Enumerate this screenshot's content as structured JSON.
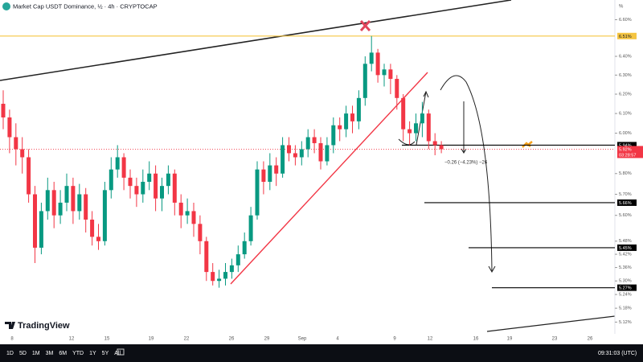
{
  "chart_data": {
    "type": "candlestick",
    "title": "Market Cap USDT Dominance, ½ · 4h · CRYPTOCAP",
    "log_scale": true,
    "ylim": [
      5.08,
      6.71
    ],
    "y_unit": "%",
    "yticks": [
      {
        "value": 6.6,
        "label": "6.60%"
      },
      {
        "value": 6.4,
        "label": "6.40%"
      },
      {
        "value": 6.3,
        "label": "6.30%"
      },
      {
        "value": 6.2,
        "label": "6.20%"
      },
      {
        "value": 6.1,
        "label": "6.10%"
      },
      {
        "value": 6.0,
        "label": "6.00%"
      },
      {
        "value": 5.8,
        "label": "5.80%"
      },
      {
        "value": 5.7,
        "label": "5.70%"
      },
      {
        "value": 5.6,
        "label": "5.60%"
      },
      {
        "value": 5.48,
        "label": "5.48%"
      },
      {
        "value": 5.42,
        "label": "5.42%"
      },
      {
        "value": 5.36,
        "label": "5.36%"
      },
      {
        "value": 5.3,
        "label": "5.30%"
      },
      {
        "value": 5.24,
        "label": "5.24%"
      },
      {
        "value": 5.18,
        "label": "5.18%"
      },
      {
        "value": 5.12,
        "label": "5.12%"
      }
    ],
    "x_labels": [
      "8",
      "12",
      "15",
      "19",
      "22",
      "26",
      "29",
      "Sep",
      "4",
      "9",
      "12",
      "16",
      "19",
      "23",
      "26"
    ],
    "up_color": "#089981",
    "down_color": "#f23645",
    "series": [
      {
        "open": [
          6.15,
          6.08,
          5.98,
          5.92,
          5.88,
          5.7,
          5.45,
          5.62,
          5.72,
          5.6,
          5.66,
          5.74,
          5.62,
          5.7,
          5.58,
          5.5,
          5.48,
          5.72,
          5.82,
          5.88,
          5.78,
          5.74,
          5.7,
          5.76,
          5.8,
          5.68,
          5.74,
          5.8,
          5.66,
          5.6,
          5.62,
          5.56,
          5.48,
          5.34,
          5.3,
          5.31,
          5.34,
          5.37,
          5.42,
          5.48,
          5.6,
          5.82,
          5.76,
          5.84,
          5.8,
          5.94,
          5.9,
          5.88,
          5.92,
          5.98,
          5.95,
          5.86,
          5.94,
          6.04,
          6.02,
          6.1,
          6.06,
          6.18,
          6.36,
          6.42,
          6.3,
          6.33,
          6.28,
          6.18,
          6.02,
          6.0,
          6.05,
          6.1,
          5.96,
          5.94
        ],
        "high": [
          6.22,
          6.12,
          6.05,
          5.98,
          5.92,
          5.74,
          5.66,
          5.78,
          5.76,
          5.72,
          5.8,
          5.78,
          5.75,
          5.73,
          5.62,
          5.56,
          5.76,
          5.88,
          5.94,
          5.9,
          5.82,
          5.78,
          5.82,
          5.86,
          5.84,
          5.78,
          5.84,
          5.82,
          5.7,
          5.68,
          5.66,
          5.6,
          5.5,
          5.38,
          5.35,
          5.38,
          5.4,
          5.46,
          5.52,
          5.64,
          5.86,
          5.86,
          5.9,
          5.88,
          5.98,
          5.98,
          5.94,
          5.96,
          6.02,
          6.02,
          5.98,
          5.98,
          6.08,
          6.08,
          6.14,
          6.14,
          6.22,
          6.4,
          6.51,
          6.44,
          6.36,
          6.36,
          6.3,
          6.2,
          6.06,
          6.1,
          6.16,
          6.12,
          6.0,
          5.96
        ],
        "low": [
          6.02,
          5.9,
          5.84,
          5.8,
          5.66,
          5.38,
          5.42,
          5.58,
          5.54,
          5.56,
          5.62,
          5.56,
          5.58,
          5.52,
          5.46,
          5.44,
          5.46,
          5.68,
          5.78,
          5.72,
          5.68,
          5.64,
          5.66,
          5.72,
          5.62,
          5.62,
          5.7,
          5.6,
          5.54,
          5.56,
          5.5,
          5.42,
          5.3,
          5.28,
          5.27,
          5.28,
          5.31,
          5.34,
          5.4,
          5.46,
          5.58,
          5.7,
          5.72,
          5.74,
          5.78,
          5.86,
          5.84,
          5.84,
          5.88,
          5.9,
          5.82,
          5.84,
          5.9,
          5.96,
          5.98,
          6.0,
          6.02,
          6.14,
          6.32,
          6.26,
          6.24,
          6.2,
          6.12,
          5.96,
          5.94,
          5.96,
          5.98,
          5.92,
          5.89,
          5.9
        ],
        "close": [
          6.08,
          5.98,
          5.92,
          5.88,
          5.7,
          5.45,
          5.62,
          5.72,
          5.6,
          5.66,
          5.74,
          5.62,
          5.7,
          5.58,
          5.5,
          5.48,
          5.72,
          5.82,
          5.88,
          5.78,
          5.74,
          5.7,
          5.76,
          5.8,
          5.68,
          5.74,
          5.8,
          5.66,
          5.6,
          5.62,
          5.56,
          5.48,
          5.34,
          5.3,
          5.31,
          5.34,
          5.37,
          5.42,
          5.48,
          5.6,
          5.82,
          5.76,
          5.84,
          5.8,
          5.94,
          5.9,
          5.88,
          5.92,
          5.98,
          5.95,
          5.86,
          5.94,
          6.04,
          6.02,
          6.1,
          6.06,
          6.18,
          6.36,
          6.42,
          6.3,
          6.33,
          6.28,
          6.18,
          6.02,
          6.0,
          6.05,
          6.1,
          5.96,
          5.94,
          5.92
        ]
      }
    ],
    "levels": [
      {
        "value": 6.51,
        "label": "6.51%",
        "color": "#f5c542"
      },
      {
        "value": 5.94,
        "label": "5.94%",
        "color": "#000000"
      },
      {
        "value": 5.66,
        "label": "5.66%",
        "color": "#000000"
      },
      {
        "value": 5.45,
        "label": "5.45%",
        "color": "#000000"
      },
      {
        "value": 5.27,
        "label": "5.27%",
        "color": "#000000"
      }
    ],
    "current_price": {
      "value": 5.92,
      "label": "5.92%",
      "countdown": "03:28:57",
      "color": "#f23645"
    },
    "measure_label": "−0.26 (−4.23%) −26"
  },
  "brand": "TradingView",
  "toolbar": {
    "ranges": [
      "1D",
      "5D",
      "1M",
      "3M",
      "6M",
      "YTD",
      "1Y",
      "5Y",
      "All"
    ],
    "clock": "09:31:03 (UTC)"
  }
}
